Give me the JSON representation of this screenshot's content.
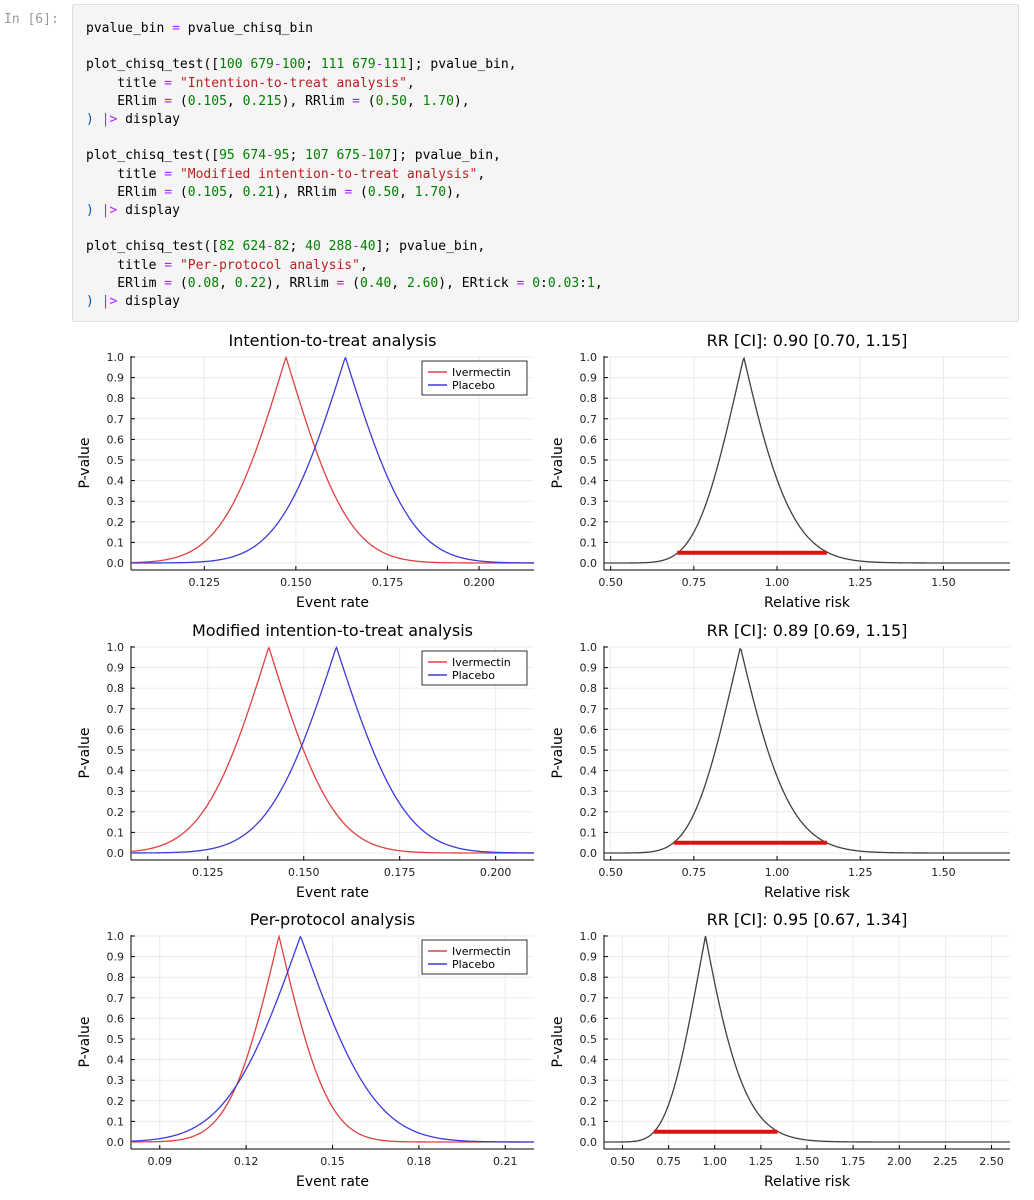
{
  "prompt": "In [6]:",
  "code": {
    "lines": [
      [
        [
          "pvalue_bin ",
          ""
        ],
        [
          "=",
          "op"
        ],
        [
          " pvalue_chisq_bin",
          ""
        ]
      ],
      [],
      [
        [
          "plot_chisq_test([",
          ""
        ],
        [
          "100",
          "num"
        ],
        [
          " ",
          ""
        ],
        [
          "679",
          "num"
        ],
        [
          "-",
          "op"
        ],
        [
          "100",
          "num"
        ],
        [
          "; ",
          ""
        ],
        [
          "111",
          "num"
        ],
        [
          " ",
          ""
        ],
        [
          "679",
          "num"
        ],
        [
          "-",
          "op"
        ],
        [
          "111",
          "num"
        ],
        [
          "]; pvalue_bin,",
          ""
        ]
      ],
      [
        [
          "    title ",
          ""
        ],
        [
          "=",
          "op"
        ],
        [
          " ",
          ""
        ],
        [
          "\"Intention-to-treat analysis\"",
          "str"
        ],
        [
          ",",
          ""
        ]
      ],
      [
        [
          "    ERlim ",
          ""
        ],
        [
          "=",
          "op"
        ],
        [
          " (",
          ""
        ],
        [
          "0.105",
          "num"
        ],
        [
          ", ",
          ""
        ],
        [
          "0.215",
          "num"
        ],
        [
          "), RRlim ",
          ""
        ],
        [
          "=",
          "op"
        ],
        [
          " (",
          ""
        ],
        [
          "0.50",
          "num"
        ],
        [
          ", ",
          ""
        ],
        [
          "1.70",
          "num"
        ],
        [
          "),",
          ""
        ]
      ],
      [
        [
          ")",
          "pn"
        ],
        [
          " ",
          ""
        ],
        [
          "|>",
          "pipe"
        ],
        [
          " display",
          ""
        ]
      ],
      [],
      [
        [
          "plot_chisq_test([",
          ""
        ],
        [
          "95",
          "num"
        ],
        [
          " ",
          ""
        ],
        [
          "674",
          "num"
        ],
        [
          "-",
          "op"
        ],
        [
          "95",
          "num"
        ],
        [
          "; ",
          ""
        ],
        [
          "107",
          "num"
        ],
        [
          " ",
          ""
        ],
        [
          "675",
          "num"
        ],
        [
          "-",
          "op"
        ],
        [
          "107",
          "num"
        ],
        [
          "]; pvalue_bin,",
          ""
        ]
      ],
      [
        [
          "    title ",
          ""
        ],
        [
          "=",
          "op"
        ],
        [
          " ",
          ""
        ],
        [
          "\"Modified intention-to-treat analysis\"",
          "str"
        ],
        [
          ",",
          ""
        ]
      ],
      [
        [
          "    ERlim ",
          ""
        ],
        [
          "=",
          "op"
        ],
        [
          " (",
          ""
        ],
        [
          "0.105",
          "num"
        ],
        [
          ", ",
          ""
        ],
        [
          "0.21",
          "num"
        ],
        [
          "), RRlim ",
          ""
        ],
        [
          "=",
          "op"
        ],
        [
          " (",
          ""
        ],
        [
          "0.50",
          "num"
        ],
        [
          ", ",
          ""
        ],
        [
          "1.70",
          "num"
        ],
        [
          "),",
          ""
        ]
      ],
      [
        [
          ")",
          "pn"
        ],
        [
          " ",
          ""
        ],
        [
          "|>",
          "pipe"
        ],
        [
          " display",
          ""
        ]
      ],
      [],
      [
        [
          "plot_chisq_test([",
          ""
        ],
        [
          "82",
          "num"
        ],
        [
          " ",
          ""
        ],
        [
          "624",
          "num"
        ],
        [
          "-",
          "op"
        ],
        [
          "82",
          "num"
        ],
        [
          "; ",
          ""
        ],
        [
          "40",
          "num"
        ],
        [
          " ",
          ""
        ],
        [
          "288",
          "num"
        ],
        [
          "-",
          "op"
        ],
        [
          "40",
          "num"
        ],
        [
          "]; pvalue_bin,",
          ""
        ]
      ],
      [
        [
          "    title ",
          ""
        ],
        [
          "=",
          "op"
        ],
        [
          " ",
          ""
        ],
        [
          "\"Per-protocol analysis\"",
          "str"
        ],
        [
          ",",
          ""
        ]
      ],
      [
        [
          "    ERlim ",
          ""
        ],
        [
          "=",
          "op"
        ],
        [
          " (",
          ""
        ],
        [
          "0.08",
          "num"
        ],
        [
          ", ",
          ""
        ],
        [
          "0.22",
          "num"
        ],
        [
          "), RRlim ",
          ""
        ],
        [
          "=",
          "op"
        ],
        [
          " (",
          ""
        ],
        [
          "0.40",
          "num"
        ],
        [
          ", ",
          ""
        ],
        [
          "2.60",
          "num"
        ],
        [
          "), ERtick ",
          ""
        ],
        [
          "=",
          "op"
        ],
        [
          " ",
          ""
        ],
        [
          "0",
          "num"
        ],
        [
          ":",
          ""
        ],
        [
          "0.03",
          "num"
        ],
        [
          ":",
          ""
        ],
        [
          "1",
          "num"
        ],
        [
          ",",
          ""
        ]
      ],
      [
        [
          ")",
          "pn"
        ],
        [
          " ",
          ""
        ],
        [
          "|>",
          "pipe"
        ],
        [
          " display",
          ""
        ]
      ]
    ]
  },
  "colors": {
    "ivermectin": "#e04040",
    "placebo": "#3b3bd9",
    "rr_curve": "#404040",
    "ci_bar": "#e01010"
  },
  "chart_data": [
    {
      "type": "line",
      "title": "Intention-to-treat analysis",
      "xlabel": "Event rate",
      "ylabel": "P-value",
      "xlim": [
        0.105,
        0.215
      ],
      "ylim": [
        0,
        1
      ],
      "xticks": [
        0.125,
        0.15,
        0.175,
        0.2
      ],
      "xtick_labels": [
        "0.125",
        "0.150",
        "0.175",
        "0.200"
      ],
      "yticks": [
        0,
        0.1,
        0.2,
        0.3,
        0.4,
        0.5,
        0.6,
        0.7,
        0.8,
        0.9,
        1.0
      ],
      "ytick_labels": [
        "0.0",
        "0.1",
        "0.2",
        "0.3",
        "0.4",
        "0.5",
        "0.6",
        "0.7",
        "0.8",
        "0.9",
        "1.0"
      ],
      "legend": "top-right",
      "series": [
        {
          "name": "Ivermectin",
          "color": "#e04040",
          "peak": 0.1473,
          "n": 679
        },
        {
          "name": "Placebo",
          "color": "#3b3bd9",
          "peak": 0.1635,
          "n": 679
        }
      ]
    },
    {
      "type": "line",
      "title": "RR [CI]: 0.90 [0.70, 1.15]",
      "xlabel": "Relative risk",
      "ylabel": "P-value",
      "xlim": [
        0.48,
        1.7
      ],
      "ylim": [
        0,
        1
      ],
      "xticks": [
        0.5,
        0.75,
        1.0,
        1.25,
        1.5
      ],
      "xtick_labels": [
        "0.50",
        "0.75",
        "1.00",
        "1.25",
        "1.50"
      ],
      "yticks": [
        0,
        0.1,
        0.2,
        0.3,
        0.4,
        0.5,
        0.6,
        0.7,
        0.8,
        0.9,
        1.0
      ],
      "ytick_labels": [
        "0.0",
        "0.1",
        "0.2",
        "0.3",
        "0.4",
        "0.5",
        "0.6",
        "0.7",
        "0.8",
        "0.9",
        "1.0"
      ],
      "rr": {
        "estimate": 0.9,
        "ci": [
          0.7,
          1.15
        ],
        "ci_level": 0.05
      }
    },
    {
      "type": "line",
      "title": "Modified intention-to-treat analysis",
      "xlabel": "Event rate",
      "ylabel": "P-value",
      "xlim": [
        0.105,
        0.21
      ],
      "ylim": [
        0,
        1
      ],
      "xticks": [
        0.125,
        0.15,
        0.175,
        0.2
      ],
      "xtick_labels": [
        "0.125",
        "0.150",
        "0.175",
        "0.200"
      ],
      "yticks": [
        0,
        0.1,
        0.2,
        0.3,
        0.4,
        0.5,
        0.6,
        0.7,
        0.8,
        0.9,
        1.0
      ],
      "ytick_labels": [
        "0.0",
        "0.1",
        "0.2",
        "0.3",
        "0.4",
        "0.5",
        "0.6",
        "0.7",
        "0.8",
        "0.9",
        "1.0"
      ],
      "legend": "top-right",
      "series": [
        {
          "name": "Ivermectin",
          "color": "#e04040",
          "peak": 0.1409,
          "n": 674
        },
        {
          "name": "Placebo",
          "color": "#3b3bd9",
          "peak": 0.1585,
          "n": 675
        }
      ]
    },
    {
      "type": "line",
      "title": "RR [CI]: 0.89 [0.69, 1.15]",
      "xlabel": "Relative risk",
      "ylabel": "P-value",
      "xlim": [
        0.48,
        1.7
      ],
      "ylim": [
        0,
        1
      ],
      "xticks": [
        0.5,
        0.75,
        1.0,
        1.25,
        1.5
      ],
      "xtick_labels": [
        "0.50",
        "0.75",
        "1.00",
        "1.25",
        "1.50"
      ],
      "yticks": [
        0,
        0.1,
        0.2,
        0.3,
        0.4,
        0.5,
        0.6,
        0.7,
        0.8,
        0.9,
        1.0
      ],
      "ytick_labels": [
        "0.0",
        "0.1",
        "0.2",
        "0.3",
        "0.4",
        "0.5",
        "0.6",
        "0.7",
        "0.8",
        "0.9",
        "1.0"
      ],
      "rr": {
        "estimate": 0.89,
        "ci": [
          0.69,
          1.15
        ],
        "ci_level": 0.05
      }
    },
    {
      "type": "line",
      "title": "Per-protocol analysis",
      "xlabel": "Event rate",
      "ylabel": "P-value",
      "xlim": [
        0.08,
        0.22
      ],
      "ylim": [
        0,
        1
      ],
      "xticks": [
        0.09,
        0.12,
        0.15,
        0.18,
        0.21
      ],
      "xtick_labels": [
        "0.09",
        "0.12",
        "0.15",
        "0.18",
        "0.21"
      ],
      "yticks": [
        0,
        0.1,
        0.2,
        0.3,
        0.4,
        0.5,
        0.6,
        0.7,
        0.8,
        0.9,
        1.0
      ],
      "ytick_labels": [
        "0.0",
        "0.1",
        "0.2",
        "0.3",
        "0.4",
        "0.5",
        "0.6",
        "0.7",
        "0.8",
        "0.9",
        "1.0"
      ],
      "legend": "top-right",
      "series": [
        {
          "name": "Ivermectin",
          "color": "#e04040",
          "peak": 0.1314,
          "n": 624
        },
        {
          "name": "Placebo",
          "color": "#3b3bd9",
          "peak": 0.1389,
          "n": 288
        }
      ]
    },
    {
      "type": "line",
      "title": "RR [CI]: 0.95 [0.67, 1.34]",
      "xlabel": "Relative risk",
      "ylabel": "P-value",
      "xlim": [
        0.4,
        2.6
      ],
      "ylim": [
        0,
        1
      ],
      "xticks": [
        0.5,
        0.75,
        1.0,
        1.25,
        1.5,
        1.75,
        2.0,
        2.25,
        2.5
      ],
      "xtick_labels": [
        "0.50",
        "0.75",
        "1.00",
        "1.25",
        "1.50",
        "1.75",
        "2.00",
        "2.25",
        "2.50"
      ],
      "yticks": [
        0,
        0.1,
        0.2,
        0.3,
        0.4,
        0.5,
        0.6,
        0.7,
        0.8,
        0.9,
        1.0
      ],
      "ytick_labels": [
        "0.0",
        "0.1",
        "0.2",
        "0.3",
        "0.4",
        "0.5",
        "0.6",
        "0.7",
        "0.8",
        "0.9",
        "1.0"
      ],
      "rr": {
        "estimate": 0.95,
        "ci": [
          0.67,
          1.34
        ],
        "ci_level": 0.05
      }
    }
  ]
}
